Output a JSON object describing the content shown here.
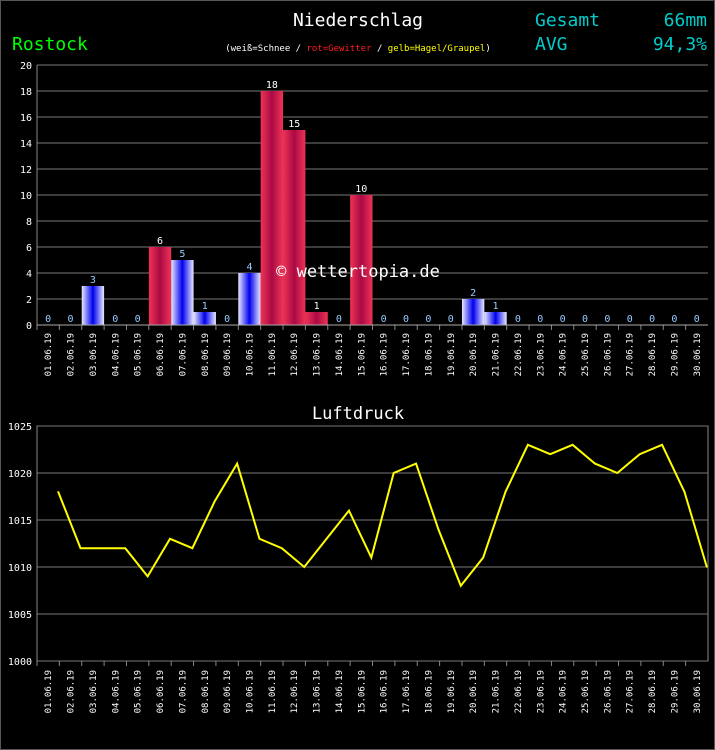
{
  "header": {
    "title": "Niederschlag",
    "station": "Rostock",
    "legend_prefix": "(weiß=Schnee / ",
    "legend_red": "rot=Gewitter",
    "legend_sep": " / ",
    "legend_yellow": "gelb=Hagel/Graupel",
    "legend_suffix": ")",
    "total_label": "Gesamt",
    "total_value": "66mm",
    "avg_label": "AVG",
    "avg_value": "94,3%",
    "watermark": "© wettertopia.de"
  },
  "colors": {
    "rain": "#0000ff",
    "thunder": "#cc1144",
    "line": "#ffff00",
    "station": "#00ff00",
    "stats": "#00cccc"
  },
  "chart_data": [
    {
      "type": "bar",
      "title": "Niederschlag",
      "ylim": [
        0,
        20
      ],
      "yticks": [
        0,
        2,
        4,
        6,
        8,
        10,
        12,
        14,
        16,
        18,
        20
      ],
      "categories": [
        "01.06.19",
        "02.06.19",
        "03.06.19",
        "04.06.19",
        "05.06.19",
        "06.06.19",
        "07.06.19",
        "08.06.19",
        "09.06.19",
        "10.06.19",
        "11.06.19",
        "12.06.19",
        "13.06.19",
        "14.06.19",
        "15.06.19",
        "16.06.19",
        "17.06.19",
        "18.06.19",
        "19.06.19",
        "20.06.19",
        "21.06.19",
        "22.06.19",
        "23.06.19",
        "24.06.19",
        "25.06.19",
        "26.06.19",
        "27.06.19",
        "28.06.19",
        "29.06.19",
        "30.06.19"
      ],
      "values": [
        0,
        0,
        3,
        0,
        0,
        6,
        5,
        1,
        0,
        4,
        18,
        15,
        1,
        0,
        10,
        0,
        0,
        0,
        0,
        2,
        1,
        0,
        0,
        0,
        0,
        0,
        0,
        0,
        0,
        0
      ],
      "kind": [
        "r",
        "r",
        "r",
        "r",
        "r",
        "t",
        "r",
        "r",
        "r",
        "r",
        "t",
        "t",
        "t",
        "r",
        "t",
        "r",
        "r",
        "r",
        "r",
        "r",
        "r",
        "r",
        "r",
        "r",
        "r",
        "r",
        "r",
        "r",
        "r",
        "r"
      ]
    },
    {
      "type": "line",
      "title": "Luftdruck",
      "ylim": [
        1000,
        1025
      ],
      "yticks": [
        1000,
        1005,
        1010,
        1015,
        1020,
        1025
      ],
      "categories": [
        "01.06.19",
        "02.06.19",
        "03.06.19",
        "04.06.19",
        "05.06.19",
        "06.06.19",
        "07.06.19",
        "08.06.19",
        "09.06.19",
        "10.06.19",
        "11.06.19",
        "12.06.19",
        "13.06.19",
        "14.06.19",
        "15.06.19",
        "16.06.19",
        "17.06.19",
        "18.06.19",
        "19.06.19",
        "20.06.19",
        "21.06.19",
        "22.06.19",
        "23.06.19",
        "24.06.19",
        "25.06.19",
        "26.06.19",
        "27.06.19",
        "28.06.19",
        "29.06.19",
        "30.06.19"
      ],
      "values": [
        1018,
        1012,
        1012,
        1012,
        1009,
        1013,
        1012,
        1017,
        1021,
        1013,
        1012,
        1010,
        1013,
        1016,
        1011,
        1020,
        1021,
        1014,
        1008,
        1011,
        1018,
        1023,
        1022,
        1023,
        1021,
        1020,
        1022,
        1023,
        1018,
        1010
      ]
    }
  ]
}
